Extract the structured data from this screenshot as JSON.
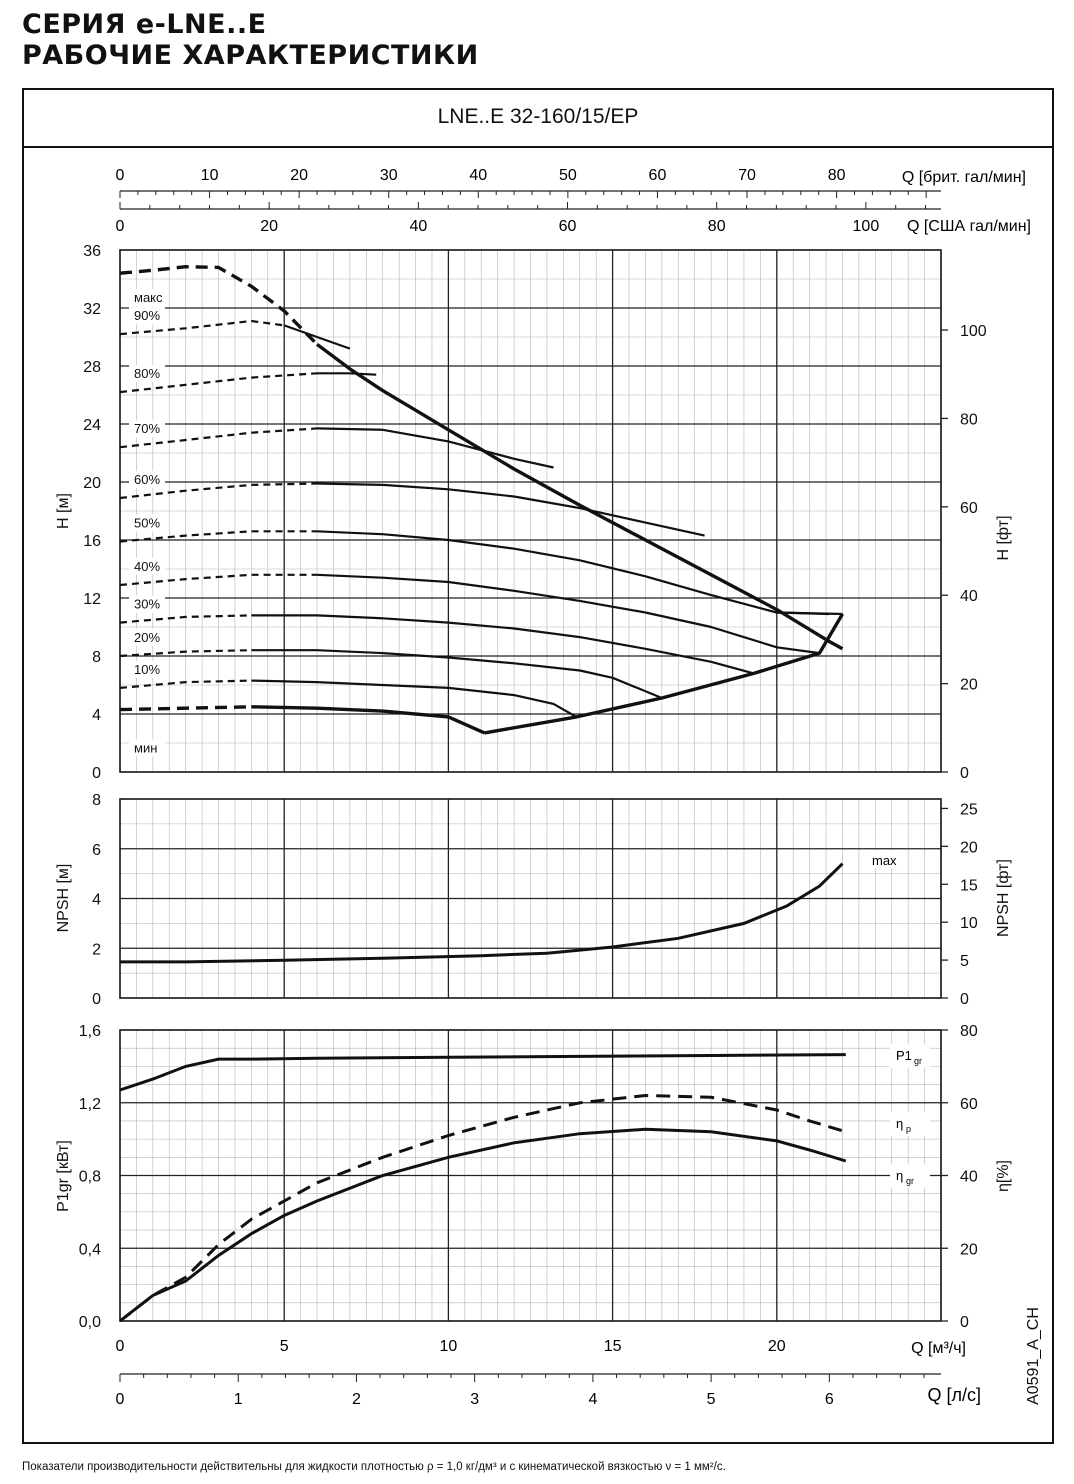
{
  "header": {
    "line1": "СЕРИЯ e-LNE..E",
    "line2": "РАБОЧИЕ ХАРАКТЕРИСТИКИ"
  },
  "model": "LNE..E 32-160/15/EP",
  "footnote": "Показатели производительности действительны для жидкости плотностью ρ = 1,0 кг/дм³ и с кинематической вязкостью ν = 1 мм²/с.",
  "drawing_code": "A0591_A_CH",
  "chart_data": [
    {
      "type": "line",
      "name": "head",
      "x_unit": "m3/h",
      "xlim": [
        0,
        25
      ],
      "ylim": [
        0,
        36
      ],
      "ylabel": "H [м]",
      "ylabel_right": "H [фт]",
      "yticks": [
        "0",
        "4",
        "8",
        "12",
        "16",
        "20",
        "24",
        "28",
        "32",
        "36"
      ],
      "yticks_right": [
        "0",
        "20",
        "40",
        "60",
        "80",
        "100"
      ],
      "top_axes": [
        {
          "label": "Q [брит. гал/мин]",
          "ticks": [
            "0",
            "10",
            "20",
            "30",
            "40",
            "50",
            "60",
            "70",
            "80"
          ]
        },
        {
          "label": "Q [США гал/мин]",
          "ticks": [
            "0",
            "20",
            "40",
            "60",
            "80",
            "100"
          ]
        }
      ],
      "series": [
        {
          "name": "макс",
          "label": "макс",
          "dash_until": 5,
          "points": [
            [
              0,
              34.4
            ],
            [
              1,
              34.6
            ],
            [
              2,
              34.85
            ],
            [
              3,
              34.8
            ],
            [
              4,
              33.5
            ],
            [
              5,
              31.8
            ],
            [
              6,
              29.5
            ],
            [
              7,
              27.8
            ],
            [
              8,
              26.3
            ],
            [
              10,
              23.6
            ],
            [
              12,
              20.9
            ],
            [
              14,
              18.4
            ],
            [
              16,
              16.0
            ],
            [
              18,
              13.6
            ],
            [
              20,
              11.2
            ],
            [
              21.6,
              9.0
            ],
            [
              22.0,
              8.5
            ]
          ]
        },
        {
          "name": "90%",
          "label": "90%",
          "dash_until": 4.5,
          "points": [
            [
              0,
              30.2
            ],
            [
              2,
              30.6
            ],
            [
              4,
              31.1
            ],
            [
              5,
              30.8
            ],
            [
              6,
              30.0
            ],
            [
              7,
              29.2
            ]
          ]
        },
        {
          "name": "80%",
          "label": "80%",
          "dash_until": 4.5,
          "points": [
            [
              0,
              26.2
            ],
            [
              2,
              26.7
            ],
            [
              4,
              27.2
            ],
            [
              6,
              27.5
            ],
            [
              7,
              27.5
            ],
            [
              7.8,
              27.4
            ]
          ]
        },
        {
          "name": "70%",
          "label": "70%",
          "dash_until": 4.5,
          "points": [
            [
              0,
              22.4
            ],
            [
              2,
              22.9
            ],
            [
              4,
              23.4
            ],
            [
              6,
              23.7
            ],
            [
              8,
              23.6
            ],
            [
              10,
              22.8
            ],
            [
              12,
              21.6
            ],
            [
              13.2,
              21.0
            ]
          ]
        },
        {
          "name": "60%",
          "label": "60%",
          "dash_until": 4.5,
          "points": [
            [
              0,
              18.9
            ],
            [
              2,
              19.4
            ],
            [
              4,
              19.8
            ],
            [
              6,
              19.9
            ],
            [
              8,
              19.8
            ],
            [
              10,
              19.5
            ],
            [
              12,
              19.0
            ],
            [
              14,
              18.2
            ],
            [
              16,
              17.2
            ],
            [
              17.8,
              16.3
            ]
          ]
        },
        {
          "name": "50%",
          "label": "50%",
          "dash_until": 4.5,
          "points": [
            [
              0,
              15.9
            ],
            [
              2,
              16.3
            ],
            [
              4,
              16.6
            ],
            [
              6,
              16.6
            ],
            [
              8,
              16.4
            ],
            [
              10,
              16.0
            ],
            [
              12,
              15.4
            ],
            [
              14,
              14.6
            ],
            [
              16,
              13.5
            ],
            [
              18,
              12.2
            ],
            [
              20,
              11.0
            ],
            [
              21.6,
              10.9
            ]
          ]
        },
        {
          "name": "40%",
          "label": "40%",
          "dash_until": 4.5,
          "points": [
            [
              0,
              12.9
            ],
            [
              2,
              13.3
            ],
            [
              4,
              13.6
            ],
            [
              6,
              13.6
            ],
            [
              8,
              13.4
            ],
            [
              10,
              13.1
            ],
            [
              12,
              12.5
            ],
            [
              14,
              11.8
            ],
            [
              16,
              11.0
            ],
            [
              18,
              10.0
            ],
            [
              20,
              8.6
            ],
            [
              21.3,
              8.2
            ]
          ]
        },
        {
          "name": "30%",
          "label": "30%",
          "dash_until": 3.5,
          "points": [
            [
              0,
              10.3
            ],
            [
              2,
              10.7
            ],
            [
              4,
              10.8
            ],
            [
              6,
              10.8
            ],
            [
              8,
              10.6
            ],
            [
              10,
              10.3
            ],
            [
              12,
              9.9
            ],
            [
              14,
              9.3
            ],
            [
              16,
              8.5
            ],
            [
              18,
              7.6
            ],
            [
              19.3,
              6.8
            ]
          ]
        },
        {
          "name": "20%",
          "label": "20%",
          "dash_until": 3.5,
          "points": [
            [
              0,
              8.0
            ],
            [
              2,
              8.3
            ],
            [
              4,
              8.4
            ],
            [
              6,
              8.4
            ],
            [
              8,
              8.2
            ],
            [
              10,
              7.9
            ],
            [
              12,
              7.5
            ],
            [
              14,
              7.0
            ],
            [
              15,
              6.5
            ],
            [
              16.5,
              5.1
            ]
          ]
        },
        {
          "name": "10%",
          "label": "10%",
          "dash_until": 3.0,
          "points": [
            [
              0,
              5.8
            ],
            [
              2,
              6.2
            ],
            [
              4,
              6.3
            ],
            [
              6,
              6.2
            ],
            [
              8,
              6.0
            ],
            [
              10,
              5.8
            ],
            [
              12,
              5.3
            ],
            [
              13.2,
              4.7
            ],
            [
              13.9,
              3.8
            ]
          ]
        },
        {
          "name": "мин",
          "label": "мин",
          "dash_until": 2.5,
          "points": [
            [
              0,
              4.3
            ],
            [
              2,
              4.4
            ],
            [
              4,
              4.5
            ],
            [
              6,
              4.4
            ],
            [
              8,
              4.2
            ],
            [
              10,
              3.8
            ],
            [
              11.1,
              2.7
            ]
          ]
        },
        {
          "name": "рабочая граница",
          "label": "",
          "dash_until": -1,
          "points": [
            [
              11.1,
              2.7
            ],
            [
              13.9,
              3.8
            ],
            [
              16.5,
              5.1
            ],
            [
              19.3,
              6.8
            ],
            [
              21.3,
              8.2
            ],
            [
              22.0,
              10.9
            ]
          ]
        },
        {
          "name": "граница макс",
          "label": "",
          "dash_until": -1,
          "points": [
            [
              20.0,
              11.0
            ],
            [
              22.0,
              10.9
            ]
          ]
        }
      ]
    },
    {
      "type": "line",
      "name": "npsh",
      "xlim": [
        0,
        25
      ],
      "ylim": [
        0,
        8
      ],
      "ylabel": "NPSH [м]",
      "ylabel_right": "NPSH [фт]",
      "yticks": [
        "0",
        "2",
        "4",
        "6",
        "8"
      ],
      "yticks_right": [
        "0",
        "5",
        "10",
        "15",
        "20",
        "25"
      ],
      "series": [
        {
          "name": "max",
          "label": "max",
          "points": [
            [
              0,
              1.45
            ],
            [
              2,
              1.45
            ],
            [
              5,
              1.52
            ],
            [
              8,
              1.6
            ],
            [
              11,
              1.7
            ],
            [
              13,
              1.8
            ],
            [
              15,
              2.05
            ],
            [
              17,
              2.4
            ],
            [
              19,
              3.0
            ],
            [
              20.3,
              3.7
            ],
            [
              21.3,
              4.5
            ],
            [
              22.0,
              5.4
            ]
          ]
        }
      ]
    },
    {
      "type": "line",
      "name": "power-efficiency",
      "xlim": [
        0,
        25
      ],
      "ylim": [
        0,
        1.6
      ],
      "ylim_right": [
        0,
        80
      ],
      "ylabel": "P1gr [кВт]",
      "ylabel_right": "η[%]",
      "yticks": [
        "0,0",
        "0,4",
        "0,8",
        "1,2",
        "1,6"
      ],
      "yticks_right": [
        "0",
        "20",
        "40",
        "60",
        "80"
      ],
      "xlabel": "Q [м³/ч]",
      "xticks": [
        "0",
        "5",
        "10",
        "15",
        "20"
      ],
      "xlabel2": "Q [л/с]",
      "xticks2": [
        "0",
        "1",
        "2",
        "3",
        "4",
        "5",
        "6"
      ],
      "series": [
        {
          "name": "P1gr",
          "label": "P1",
          "label_sub": "gr",
          "axis": "left",
          "dashed": false,
          "points": [
            [
              0,
              1.27
            ],
            [
              1,
              1.33
            ],
            [
              2,
              1.4
            ],
            [
              3,
              1.44
            ],
            [
              4,
              1.44
            ],
            [
              6,
              1.445
            ],
            [
              10,
              1.45
            ],
            [
              14,
              1.455
            ],
            [
              18,
              1.46
            ],
            [
              22.1,
              1.465
            ]
          ]
        },
        {
          "name": "ηp",
          "label": "η",
          "label_sub": "p",
          "axis": "right",
          "dashed": true,
          "points": [
            [
              0,
              0
            ],
            [
              1,
              7
            ],
            [
              2,
              12
            ],
            [
              3,
              21
            ],
            [
              4,
              28
            ],
            [
              5,
              33
            ],
            [
              6,
              38
            ],
            [
              8,
              45
            ],
            [
              10,
              51
            ],
            [
              12,
              56
            ],
            [
              14,
              60
            ],
            [
              16,
              62
            ],
            [
              18,
              61.5
            ],
            [
              20,
              58
            ],
            [
              21,
              55
            ],
            [
              22.1,
              52
            ]
          ]
        },
        {
          "name": "ηgr",
          "label": "η",
          "label_sub": "gr",
          "axis": "right",
          "dashed": false,
          "points": [
            [
              0,
              0
            ],
            [
              1,
              7
            ],
            [
              2,
              11
            ],
            [
              3,
              18
            ],
            [
              4,
              24
            ],
            [
              5,
              29
            ],
            [
              6,
              33
            ],
            [
              8,
              40
            ],
            [
              10,
              45
            ],
            [
              12,
              49
            ],
            [
              14,
              51.5
            ],
            [
              16,
              52.7
            ],
            [
              18,
              52
            ],
            [
              20,
              49.5
            ],
            [
              21,
              47
            ],
            [
              22.1,
              44
            ]
          ]
        }
      ]
    }
  ]
}
